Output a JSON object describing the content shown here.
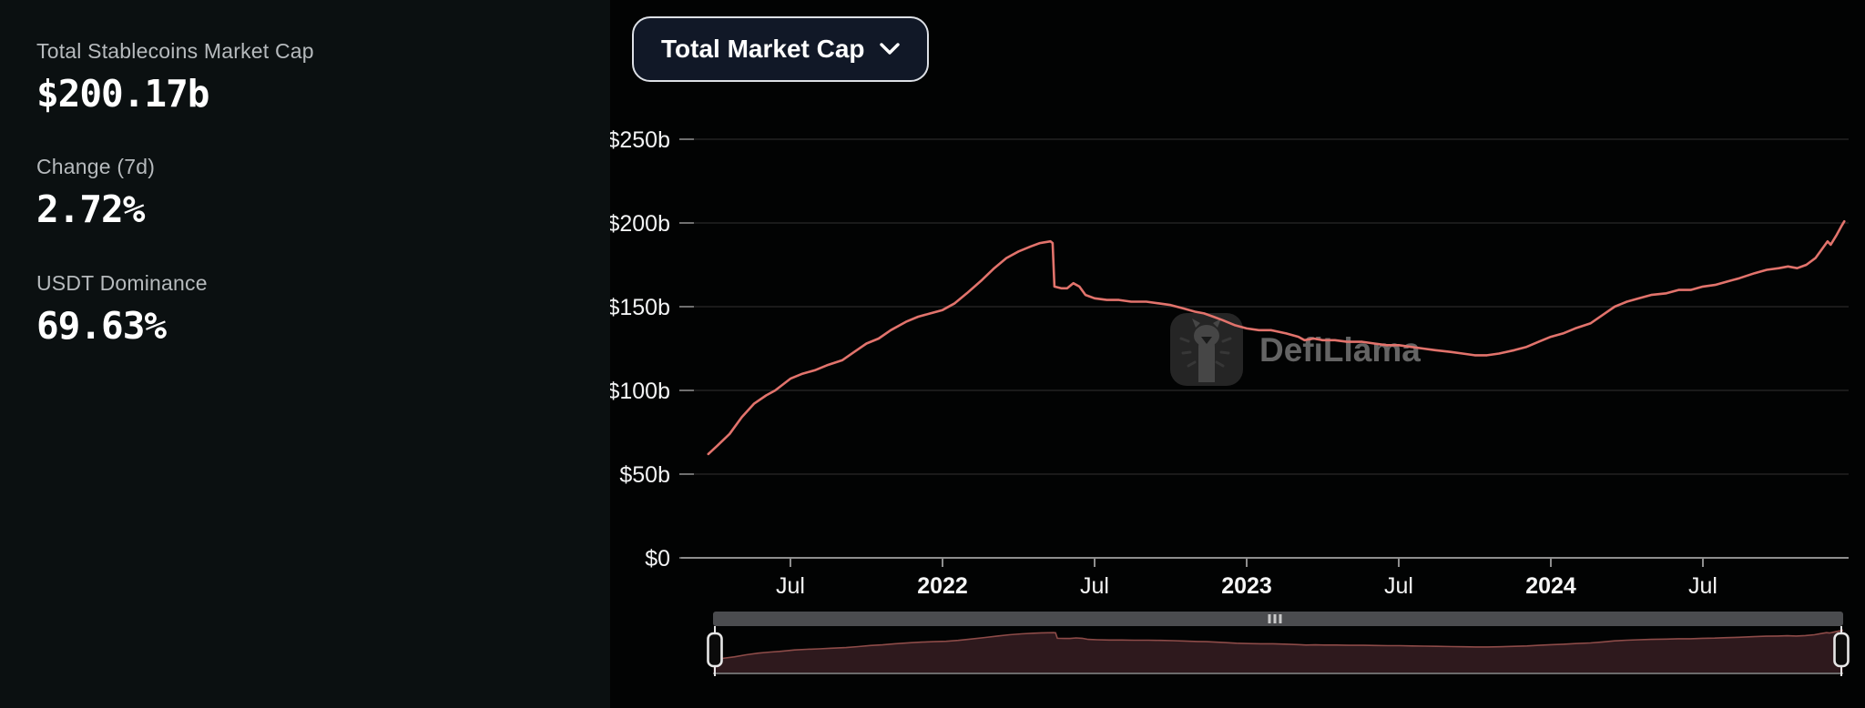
{
  "stats_panel": {
    "stats": [
      {
        "label": "Total Stablecoins Market Cap",
        "value": "$200.17b"
      },
      {
        "label": "Change (7d)",
        "value": "2.72%"
      },
      {
        "label": "USDT Dominance",
        "value": "69.63%"
      }
    ]
  },
  "toolbar": {
    "dropdown_label": "Total Market Cap"
  },
  "watermark": {
    "text": "DefiLlama"
  },
  "colors": {
    "line": "#e2736c",
    "grid": "#232323",
    "axis": "#8e8e8e",
    "panel_bg": "#0b1011",
    "chart_bg": "#020303",
    "brush_bar": "#4b4c4f",
    "brush_grip": "#c9c9c9",
    "brush_fill": "#2e191d",
    "brush_stroke": "#8d4b48",
    "handle_stroke": "#e6e6e6"
  },
  "chart_data": {
    "type": "line",
    "title": "Total Stablecoins Market Cap",
    "xlabel": "",
    "ylabel": "",
    "ylim": [
      0,
      250
    ],
    "xlim": [
      2021.23,
      2024.965
    ],
    "grid": "horizontal",
    "legend_position": "none",
    "yticks": [
      {
        "v": 0,
        "label": "$0"
      },
      {
        "v": 50,
        "label": "$50b"
      },
      {
        "v": 100,
        "label": "$100b"
      },
      {
        "v": 150,
        "label": "$150b"
      },
      {
        "v": 200,
        "label": "$200b"
      },
      {
        "v": 250,
        "label": "$250b"
      }
    ],
    "xticks": [
      {
        "t": 2021.5,
        "label": "Jul",
        "bold": false
      },
      {
        "t": 2022.0,
        "label": "2022",
        "bold": true
      },
      {
        "t": 2022.5,
        "label": "Jul",
        "bold": false
      },
      {
        "t": 2023.0,
        "label": "2023",
        "bold": true
      },
      {
        "t": 2023.5,
        "label": "Jul",
        "bold": false
      },
      {
        "t": 2024.0,
        "label": "2024",
        "bold": true
      },
      {
        "t": 2024.5,
        "label": "Jul",
        "bold": false
      }
    ],
    "series": [
      {
        "name": "Total Market Cap",
        "unit": "billion USD",
        "points": [
          [
            2021.23,
            62
          ],
          [
            2021.26,
            67
          ],
          [
            2021.3,
            74
          ],
          [
            2021.34,
            84
          ],
          [
            2021.38,
            92
          ],
          [
            2021.42,
            97
          ],
          [
            2021.45,
            100
          ],
          [
            2021.5,
            107
          ],
          [
            2021.54,
            110
          ],
          [
            2021.58,
            112
          ],
          [
            2021.62,
            115
          ],
          [
            2021.67,
            118
          ],
          [
            2021.71,
            123
          ],
          [
            2021.75,
            128
          ],
          [
            2021.79,
            131
          ],
          [
            2021.83,
            136
          ],
          [
            2021.88,
            141
          ],
          [
            2021.92,
            144
          ],
          [
            2021.96,
            146
          ],
          [
            2022.0,
            148
          ],
          [
            2022.04,
            152
          ],
          [
            2022.08,
            158
          ],
          [
            2022.13,
            166
          ],
          [
            2022.17,
            173
          ],
          [
            2022.21,
            179
          ],
          [
            2022.25,
            183
          ],
          [
            2022.29,
            186
          ],
          [
            2022.32,
            188
          ],
          [
            2022.355,
            189
          ],
          [
            2022.362,
            188
          ],
          [
            2022.368,
            162
          ],
          [
            2022.39,
            161
          ],
          [
            2022.41,
            161
          ],
          [
            2022.43,
            164
          ],
          [
            2022.45,
            162
          ],
          [
            2022.47,
            157
          ],
          [
            2022.5,
            155
          ],
          [
            2022.54,
            154
          ],
          [
            2022.58,
            154
          ],
          [
            2022.62,
            153
          ],
          [
            2022.67,
            153
          ],
          [
            2022.71,
            152
          ],
          [
            2022.75,
            151
          ],
          [
            2022.79,
            149
          ],
          [
            2022.83,
            147
          ],
          [
            2022.86,
            146
          ],
          [
            2022.89,
            144
          ],
          [
            2022.92,
            142
          ],
          [
            2022.96,
            139
          ],
          [
            2023.0,
            137
          ],
          [
            2023.04,
            136
          ],
          [
            2023.08,
            136
          ],
          [
            2023.13,
            134
          ],
          [
            2023.17,
            132
          ],
          [
            2023.19,
            130
          ],
          [
            2023.22,
            131
          ],
          [
            2023.25,
            130
          ],
          [
            2023.29,
            130
          ],
          [
            2023.33,
            129
          ],
          [
            2023.38,
            129
          ],
          [
            2023.42,
            128
          ],
          [
            2023.46,
            127
          ],
          [
            2023.5,
            127
          ],
          [
            2023.54,
            126
          ],
          [
            2023.58,
            125
          ],
          [
            2023.62,
            124
          ],
          [
            2023.67,
            123
          ],
          [
            2023.71,
            122
          ],
          [
            2023.75,
            121
          ],
          [
            2023.79,
            121
          ],
          [
            2023.83,
            122
          ],
          [
            2023.88,
            124
          ],
          [
            2023.92,
            126
          ],
          [
            2023.96,
            129
          ],
          [
            2024.0,
            132
          ],
          [
            2024.04,
            134
          ],
          [
            2024.08,
            137
          ],
          [
            2024.13,
            140
          ],
          [
            2024.17,
            145
          ],
          [
            2024.21,
            150
          ],
          [
            2024.25,
            153
          ],
          [
            2024.29,
            155
          ],
          [
            2024.33,
            157
          ],
          [
            2024.38,
            158
          ],
          [
            2024.42,
            160
          ],
          [
            2024.46,
            160
          ],
          [
            2024.5,
            162
          ],
          [
            2024.54,
            163
          ],
          [
            2024.58,
            165
          ],
          [
            2024.62,
            167
          ],
          [
            2024.67,
            170
          ],
          [
            2024.71,
            172
          ],
          [
            2024.75,
            173
          ],
          [
            2024.78,
            174
          ],
          [
            2024.81,
            173
          ],
          [
            2024.84,
            175
          ],
          [
            2024.87,
            179
          ],
          [
            2024.89,
            184
          ],
          [
            2024.91,
            189
          ],
          [
            2024.92,
            187
          ],
          [
            2024.94,
            193
          ],
          [
            2024.955,
            198
          ],
          [
            2024.965,
            201
          ]
        ]
      }
    ]
  }
}
